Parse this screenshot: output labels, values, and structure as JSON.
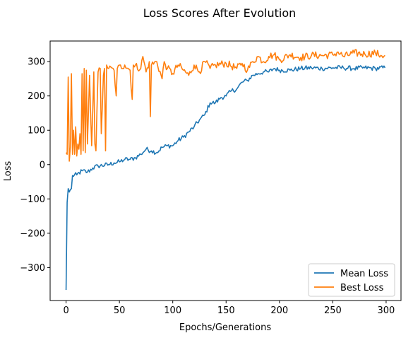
{
  "chart_data": {
    "type": "line",
    "title": "Loss Scores After Evolution",
    "xlabel": "Epochs/Generations",
    "ylabel": "Loss",
    "xlim": [
      -14.95,
      313.95
    ],
    "ylim": [
      -396,
      360
    ],
    "xticks": [
      0,
      50,
      100,
      150,
      200,
      250,
      300
    ],
    "yticks": [
      -300,
      -200,
      -100,
      0,
      100,
      200,
      300
    ],
    "grid": false,
    "legend_position": "lower-right",
    "x": {
      "start": 0,
      "end": 299,
      "step": 1
    },
    "series": [
      {
        "name": "Mean Loss",
        "color": "#1f77b4",
        "anchors": [
          [
            0,
            -365
          ],
          [
            1,
            -110
          ],
          [
            2,
            -70
          ],
          [
            3,
            -80
          ],
          [
            5,
            -70
          ],
          [
            6,
            -32
          ],
          [
            10,
            -30
          ],
          [
            15,
            -18
          ],
          [
            20,
            -22
          ],
          [
            25,
            -10
          ],
          [
            30,
            -4
          ],
          [
            40,
            0
          ],
          [
            45,
            5
          ],
          [
            50,
            8
          ],
          [
            55,
            15
          ],
          [
            60,
            15
          ],
          [
            65,
            20
          ],
          [
            70,
            30
          ],
          [
            75,
            45
          ],
          [
            80,
            40
          ],
          [
            85,
            35
          ],
          [
            90,
            50
          ],
          [
            95,
            55
          ],
          [
            100,
            55
          ],
          [
            105,
            70
          ],
          [
            110,
            80
          ],
          [
            115,
            95
          ],
          [
            120,
            110
          ],
          [
            125,
            130
          ],
          [
            130,
            145
          ],
          [
            135,
            180
          ],
          [
            140,
            180
          ],
          [
            145,
            195
          ],
          [
            150,
            200
          ],
          [
            155,
            215
          ],
          [
            160,
            220
          ],
          [
            165,
            240
          ],
          [
            170,
            245
          ],
          [
            175,
            260
          ],
          [
            180,
            265
          ],
          [
            185,
            270
          ],
          [
            190,
            270
          ],
          [
            195,
            280
          ],
          [
            200,
            275
          ],
          [
            210,
            275
          ],
          [
            220,
            280
          ],
          [
            230,
            282
          ],
          [
            240,
            280
          ],
          [
            250,
            282
          ],
          [
            260,
            282
          ],
          [
            270,
            280
          ],
          [
            280,
            282
          ],
          [
            290,
            280
          ],
          [
            299,
            282
          ]
        ]
      },
      {
        "name": "Best Loss",
        "color": "#ff7f0e",
        "anchors": [
          [
            0,
            35
          ],
          [
            1,
            30
          ],
          [
            2,
            255
          ],
          [
            3,
            10
          ],
          [
            4,
            50
          ],
          [
            5,
            265
          ],
          [
            6,
            30
          ],
          [
            7,
            100
          ],
          [
            8,
            30
          ],
          [
            9,
            110
          ],
          [
            10,
            25
          ],
          [
            11,
            60
          ],
          [
            12,
            45
          ],
          [
            13,
            90
          ],
          [
            14,
            30
          ],
          [
            15,
            265
          ],
          [
            16,
            40
          ],
          [
            17,
            280
          ],
          [
            18,
            35
          ],
          [
            19,
            275
          ],
          [
            20,
            60
          ],
          [
            22,
            260
          ],
          [
            24,
            55
          ],
          [
            26,
            270
          ],
          [
            27,
            60
          ],
          [
            28,
            40
          ],
          [
            30,
            270
          ],
          [
            32,
            280
          ],
          [
            33,
            90
          ],
          [
            35,
            260
          ],
          [
            36,
            280
          ],
          [
            37,
            40
          ],
          [
            38,
            290
          ],
          [
            40,
            280
          ],
          [
            45,
            275
          ],
          [
            47,
            200
          ],
          [
            48,
            280
          ],
          [
            55,
            290
          ],
          [
            60,
            275
          ],
          [
            62,
            190
          ],
          [
            63,
            290
          ],
          [
            70,
            280
          ],
          [
            72,
            315
          ],
          [
            75,
            270
          ],
          [
            78,
            300
          ],
          [
            79,
            140
          ],
          [
            80,
            290
          ],
          [
            85,
            300
          ],
          [
            90,
            250
          ],
          [
            92,
            300
          ],
          [
            95,
            280
          ],
          [
            100,
            265
          ],
          [
            105,
            290
          ],
          [
            110,
            275
          ],
          [
            115,
            260
          ],
          [
            120,
            290
          ],
          [
            125,
            270
          ],
          [
            130,
            300
          ],
          [
            135,
            280
          ],
          [
            140,
            290
          ],
          [
            150,
            295
          ],
          [
            160,
            280
          ],
          [
            165,
            295
          ],
          [
            170,
            275
          ],
          [
            175,
            300
          ],
          [
            180,
            315
          ],
          [
            185,
            300
          ],
          [
            190,
            315
          ],
          [
            195,
            320
          ],
          [
            200,
            305
          ],
          [
            210,
            320
          ],
          [
            220,
            312
          ],
          [
            230,
            318
          ],
          [
            240,
            318
          ],
          [
            250,
            320
          ],
          [
            255,
            328
          ],
          [
            260,
            315
          ],
          [
            270,
            325
          ],
          [
            280,
            322
          ],
          [
            290,
            325
          ],
          [
            295,
            318
          ],
          [
            299,
            318
          ]
        ]
      }
    ]
  }
}
